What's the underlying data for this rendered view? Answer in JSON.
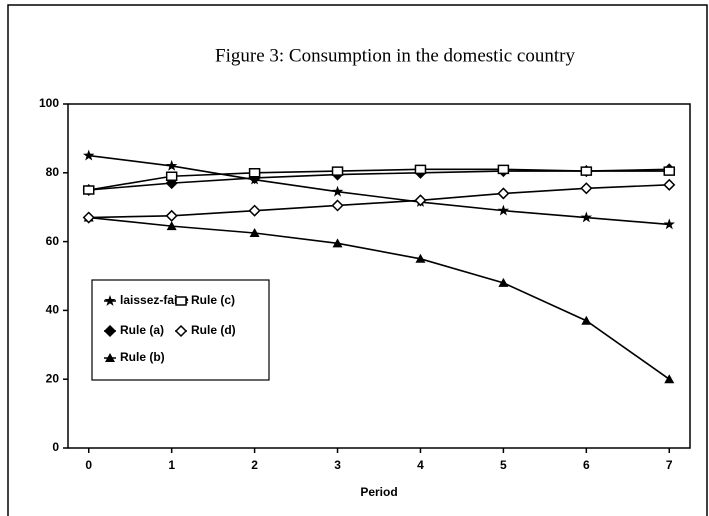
{
  "chart_data": {
    "type": "line",
    "title": "Figure 3: Consumption in the domestic country",
    "x_label": "Period",
    "x": [
      0,
      1,
      2,
      3,
      4,
      5,
      6,
      7
    ],
    "xlim": [
      -0.25,
      7.25
    ],
    "xticks": [
      0,
      1,
      2,
      3,
      4,
      5,
      6,
      7
    ],
    "ylim": [
      0,
      100
    ],
    "yticks": [
      0,
      20,
      40,
      60,
      80,
      100
    ],
    "series": [
      {
        "name": "laissez-faire",
        "color": "#000000",
        "marker": "star",
        "values": [
          85,
          82,
          78,
          74.5,
          71.5,
          69,
          67,
          65
        ]
      },
      {
        "name": "Rule (a)",
        "color": "#000000",
        "marker": "diamond-filled",
        "values": [
          75,
          77,
          78.5,
          79.5,
          80,
          80.5,
          80.5,
          81
        ]
      },
      {
        "name": "Rule (b)",
        "color": "#000000",
        "marker": "triangle",
        "values": [
          67,
          64.5,
          62.5,
          59.5,
          55,
          48,
          37,
          20
        ]
      },
      {
        "name": "Rule (c)",
        "color": "#000000",
        "marker": "square-open",
        "values": [
          75,
          79,
          80,
          80.5,
          81,
          81,
          80.5,
          80.5
        ]
      },
      {
        "name": "Rule (d)",
        "color": "#000000",
        "marker": "diamond-open",
        "values": [
          67,
          67.5,
          69,
          70.5,
          72,
          74,
          75.5,
          76.5
        ]
      }
    ]
  }
}
